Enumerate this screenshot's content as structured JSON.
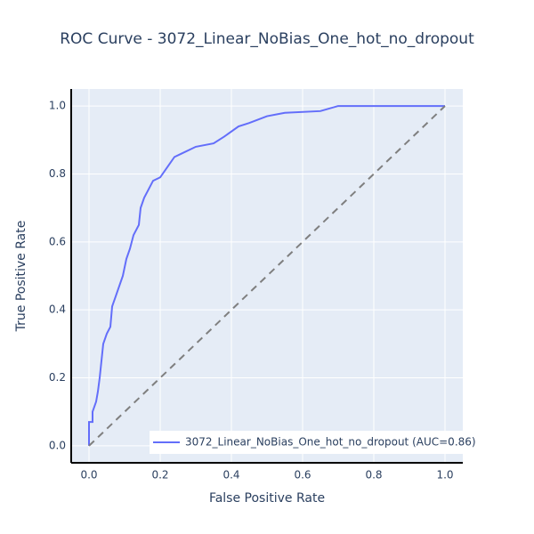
{
  "chart_data": {
    "type": "line",
    "title": "ROC Curve - 3072_Linear_NoBias_One_hot_no_dropout",
    "x_label": "False Positive Rate",
    "y_label": "True Positive Rate",
    "xlim": [
      -0.05,
      1.05
    ],
    "ylim": [
      -0.05,
      1.05
    ],
    "xticks": [
      {
        "value": 0,
        "label": "0.0"
      },
      0.2,
      0.4,
      0.6,
      0.8,
      {
        "value": 1,
        "label": "1.0"
      }
    ],
    "yticks": [
      {
        "value": 0,
        "label": "0.0"
      },
      0.2,
      0.4,
      0.6,
      0.8,
      {
        "value": 1,
        "label": "1.0"
      }
    ],
    "grid": true,
    "legend": "lower right",
    "series": [
      {
        "name": "3072_Linear_NoBias_One_hot_no_dropout (AUC=0.86)",
        "color": "#636efa",
        "dash": "solid",
        "x": [
          0,
          0,
          0.01,
          0.01,
          0.02,
          0.025,
          0.03,
          0.035,
          0.04,
          0.05,
          0.06,
          0.065,
          0.075,
          0.085,
          0.095,
          0.105,
          0.115,
          0.125,
          0.14,
          0.145,
          0.155,
          0.165,
          0.18,
          0.2,
          0.22,
          0.24,
          0.26,
          0.3,
          0.35,
          0.38,
          0.42,
          0.45,
          0.5,
          0.55,
          0.65,
          0.7,
          0.82,
          1
        ],
        "values": [
          0,
          0.07,
          0.07,
          0.1,
          0.13,
          0.16,
          0.2,
          0.25,
          0.3,
          0.33,
          0.35,
          0.41,
          0.44,
          0.47,
          0.5,
          0.55,
          0.58,
          0.62,
          0.65,
          0.7,
          0.73,
          0.75,
          0.78,
          0.79,
          0.82,
          0.85,
          0.86,
          0.88,
          0.89,
          0.91,
          0.94,
          0.95,
          0.97,
          0.98,
          0.985,
          1,
          1,
          1
        ]
      },
      {
        "color": "#7f7f7f",
        "dash": "dash",
        "x": [
          0,
          1
        ],
        "values": [
          0,
          1
        ]
      }
    ]
  }
}
